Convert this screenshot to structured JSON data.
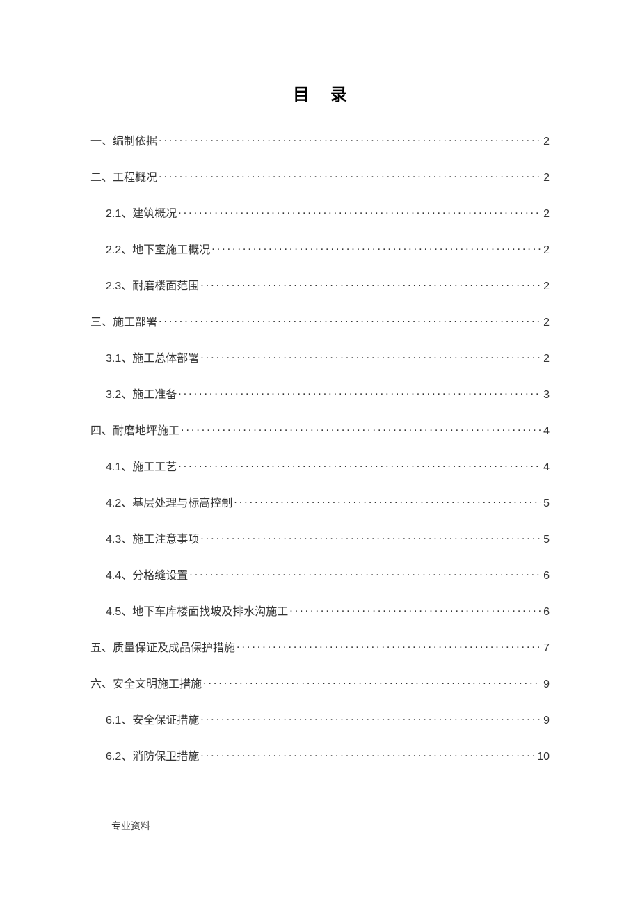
{
  "title": "目录",
  "toc": [
    {
      "label": "一、编制依据",
      "page": "2",
      "level": 0
    },
    {
      "label": "二、工程概况",
      "page": "2",
      "level": 0
    },
    {
      "label": "2.1、建筑概况",
      "page": "2",
      "level": 1
    },
    {
      "label": "2.2、地下室施工概况",
      "page": "2",
      "level": 1
    },
    {
      "label": "2.3、耐磨楼面范围",
      "page": "2",
      "level": 1
    },
    {
      "label": "三、施工部署",
      "page": "2",
      "level": 0
    },
    {
      "label": "3.1、施工总体部署",
      "page": "2",
      "level": 1
    },
    {
      "label": "3.2、施工准备",
      "page": "3",
      "level": 1
    },
    {
      "label": "四、耐磨地坪施工",
      "page": "4",
      "level": 0
    },
    {
      "label": "4.1、施工工艺",
      "page": "4",
      "level": 1
    },
    {
      "label": "4.2、基层处理与标高控制",
      "page": "5",
      "level": 1
    },
    {
      "label": "4.3、施工注意事项",
      "page": "5",
      "level": 1
    },
    {
      "label": "4.4、分格缝设置",
      "page": "6",
      "level": 1
    },
    {
      "label": "4.5、地下车库楼面找坡及排水沟施工",
      "page": "6",
      "level": 1
    },
    {
      "label": "五、质量保证及成品保护措施",
      "page": "7",
      "level": 0
    },
    {
      "label": "六、安全文明施工措施",
      "page": "9",
      "level": 0
    },
    {
      "label": "6.1、安全保证措施",
      "page": "9",
      "level": 1
    },
    {
      "label": "6.2、消防保卫措施",
      "page": "10",
      "level": 1
    }
  ],
  "footer": "专业资料"
}
